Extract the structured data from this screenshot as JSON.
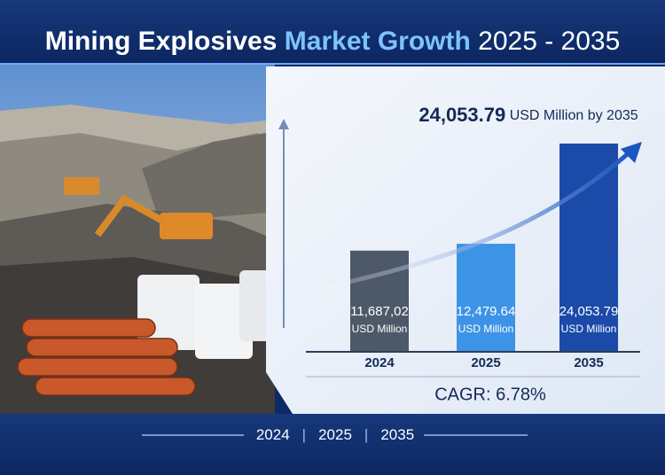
{
  "chart_data": {
    "type": "bar",
    "title_parts": [
      "Mining Explosives",
      "Market Growth",
      "2025 - 2035"
    ],
    "annotation": {
      "value": 24053.79,
      "label": "24,053.79",
      "text": "USD Million by 2035"
    },
    "categories": [
      "2024",
      "2025",
      "2035"
    ],
    "values": [
      11687.02,
      12479.64,
      24053.79
    ],
    "value_labels": [
      "11,687,02",
      "12,479.64",
      "24,053.79"
    ],
    "value_unit": "USD Million",
    "colors": [
      "#4d5868",
      "#3d93e6",
      "#1b4aa8"
    ],
    "ylim": [
      0,
      26000
    ],
    "cagr": {
      "value": 6.78,
      "label": "CAGR: 6.78%"
    },
    "footer_years": [
      "2024",
      "2025",
      "2035"
    ]
  }
}
